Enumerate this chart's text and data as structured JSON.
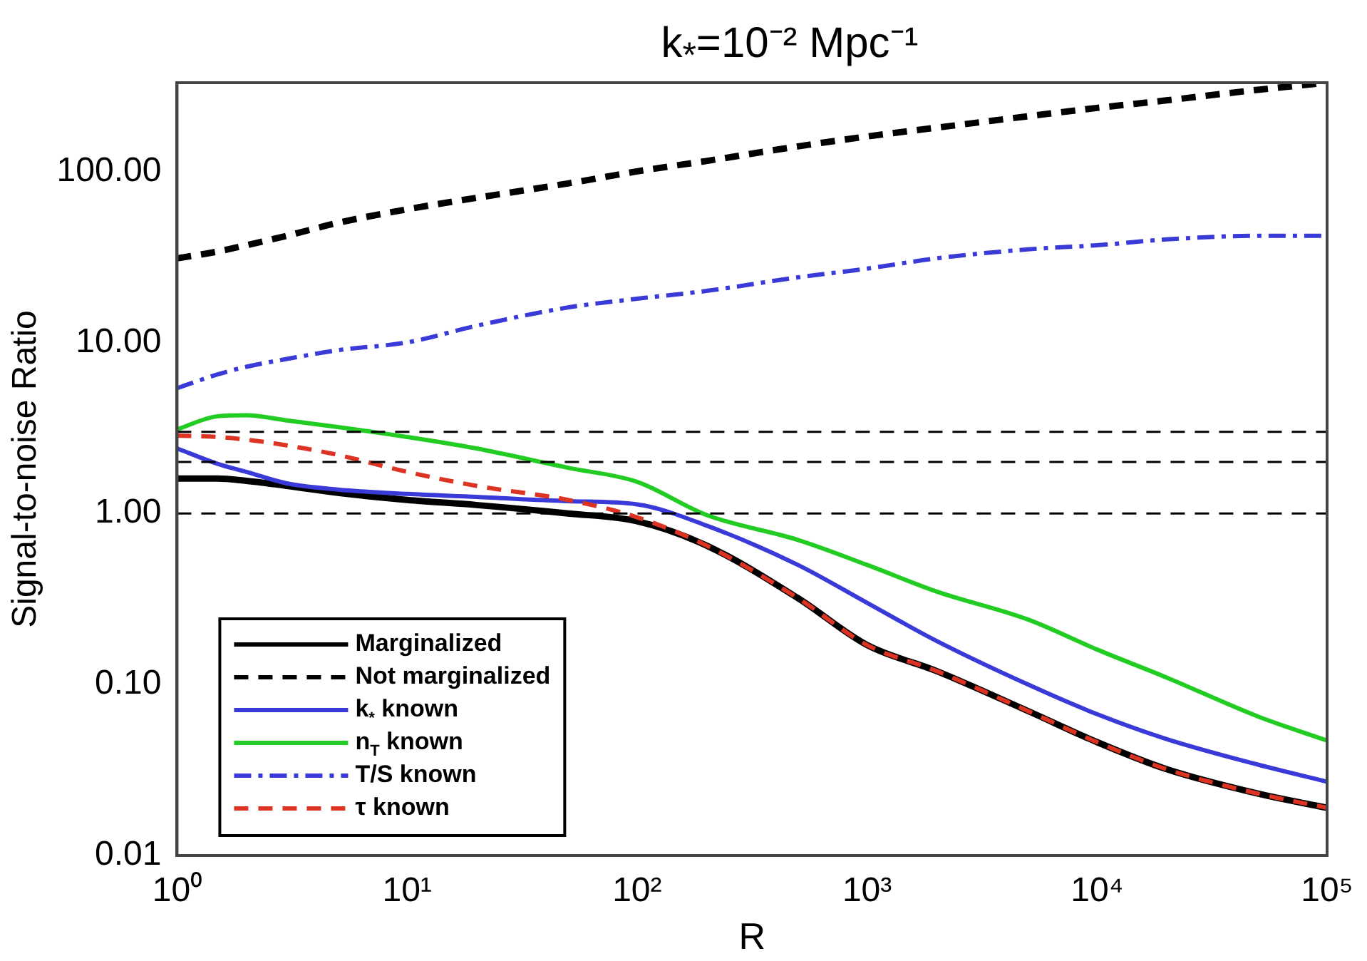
{
  "chart_data": {
    "type": "line",
    "title": "k$_{*}$=10⁻² Mpc⁻¹",
    "xlabel": "R",
    "ylabel": "Signal-to-noise Ratio",
    "log": "xy",
    "grid": false,
    "legend": "bottom left",
    "marker": "none",
    "xlim": [
      1,
      100000
    ],
    "ylim": [
      0.01,
      330
    ],
    "xticks": [
      {
        "value": 1,
        "label": "10⁰"
      },
      {
        "value": 10,
        "label": "10¹"
      },
      {
        "value": 100,
        "label": "10²"
      },
      {
        "value": 1000,
        "label": "10³"
      },
      {
        "value": 10000,
        "label": "10⁴"
      },
      {
        "value": 100000,
        "label": "10⁵"
      }
    ],
    "yticks": [
      {
        "value": 0.01,
        "label": "0.01"
      },
      {
        "value": 0.1,
        "label": "0.10"
      },
      {
        "value": 1,
        "label": "1.00"
      },
      {
        "value": 10,
        "label": "10.00"
      },
      {
        "value": 100,
        "label": "100.00"
      }
    ],
    "x": [
      1,
      1.5,
      2,
      3,
      5,
      10,
      20,
      50,
      100,
      200,
      500,
      1000,
      2000,
      5000,
      10000,
      20000,
      50000,
      100000
    ],
    "series": [
      {
        "name": "Marginalized",
        "color": "#000000",
        "line_style": "solid",
        "values": [
          1.6,
          1.6,
          1.55,
          1.45,
          1.32,
          1.2,
          1.12,
          1.0,
          0.9,
          0.65,
          0.32,
          0.17,
          0.12,
          0.07,
          0.046,
          0.032,
          0.023,
          0.019
        ]
      },
      {
        "name": "Not marginalized",
        "color": "#000000",
        "line_style": "dashed",
        "values": [
          31,
          34,
          37,
          42,
          50,
          60,
          70,
          85,
          100,
          115,
          140,
          160,
          180,
          210,
          235,
          260,
          300,
          330
        ]
      },
      {
        "name": "k$_{*}$ known",
        "color": "#3a3ad8",
        "line_style": "solid",
        "values": [
          2.4,
          1.95,
          1.75,
          1.5,
          1.38,
          1.3,
          1.25,
          1.18,
          1.13,
          0.85,
          0.5,
          0.3,
          0.18,
          0.1,
          0.067,
          0.048,
          0.034,
          0.027
        ]
      },
      {
        "name": "n$_{T}$ known",
        "color": "#22cc22",
        "line_style": "solid",
        "values": [
          3.1,
          3.7,
          3.75,
          3.5,
          3.2,
          2.8,
          2.4,
          1.85,
          1.53,
          0.98,
          0.7,
          0.5,
          0.35,
          0.24,
          0.16,
          0.11,
          0.065,
          0.047
        ]
      },
      {
        "name": "T/S known",
        "color": "#3a3ad8",
        "line_style": "dashdot",
        "values": [
          5.4,
          6.5,
          7.2,
          8,
          9,
          10,
          12.5,
          16,
          18,
          20,
          24,
          27,
          31,
          35,
          37,
          40,
          42,
          42
        ]
      },
      {
        "name": "τ known",
        "color": "#dd3322",
        "line_style": "dashed",
        "values": [
          2.85,
          2.8,
          2.7,
          2.5,
          2.2,
          1.75,
          1.45,
          1.2,
          0.95,
          0.65,
          0.32,
          0.17,
          0.12,
          0.07,
          0.046,
          0.032,
          0.023,
          0.019
        ]
      }
    ],
    "ref_lines": [
      {
        "axis": "y",
        "value": 3,
        "color": "#000000",
        "line_style": "dashed"
      },
      {
        "axis": "y",
        "value": 2,
        "color": "#000000",
        "line_style": "dashed"
      },
      {
        "axis": "y",
        "value": 1,
        "color": "#000000",
        "line_style": "dashed"
      }
    ]
  }
}
